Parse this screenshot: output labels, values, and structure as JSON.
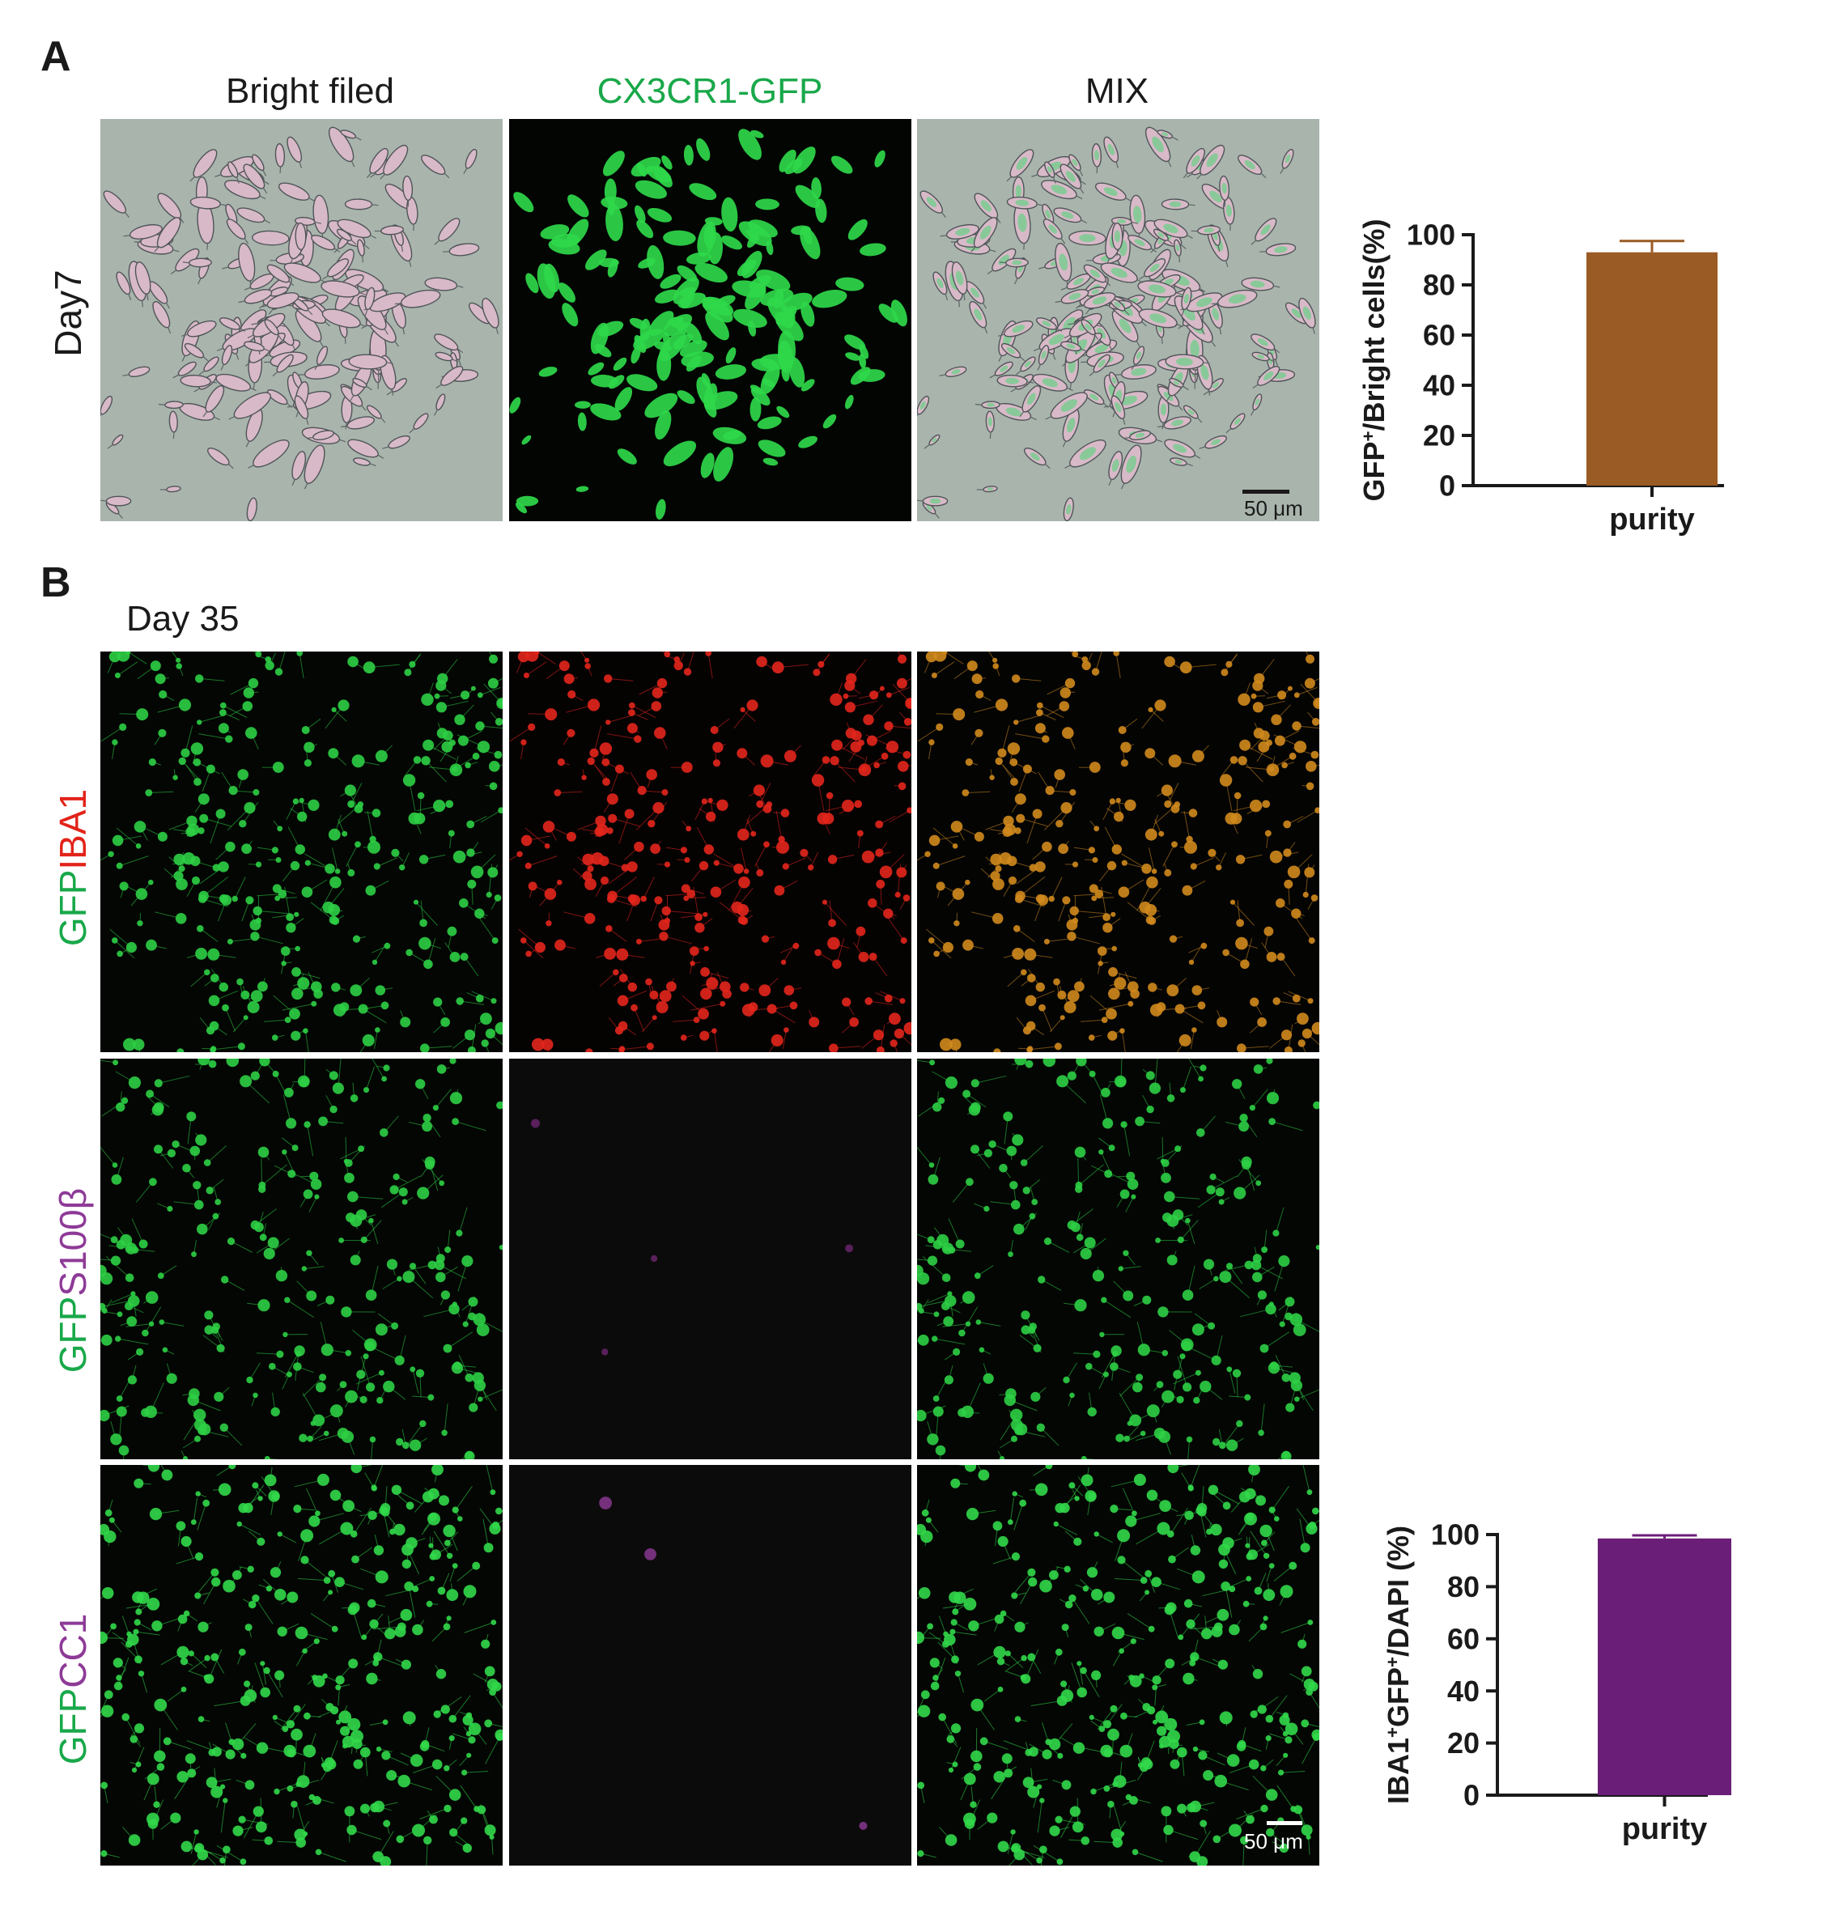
{
  "panel_a": {
    "letter": "A",
    "columns": [
      {
        "label": "Bright filed",
        "color": "#1a1a1a"
      },
      {
        "label": "CX3CR1-GFP",
        "color": "#19a84a"
      },
      {
        "label": "MIX",
        "color": "#1a1a1a"
      }
    ],
    "row_label": "Day7",
    "scale_bar": "50 μm"
  },
  "panel_b": {
    "letter": "B",
    "subtitle": "Day 35",
    "rows": [
      {
        "prefix": "GFP",
        "marker": "IBA1",
        "marker_color": "#e2231a"
      },
      {
        "prefix": "GFP",
        "marker": "S100β",
        "marker_color": "#8e3a97"
      },
      {
        "prefix": "GFP",
        "marker": "CC1",
        "marker_color": "#8e3a97"
      }
    ],
    "prefix_color": "#19a84a",
    "scale_bar": "50 μm"
  },
  "chart_data": [
    {
      "type": "bar",
      "categories": [
        "purity"
      ],
      "values": [
        93
      ],
      "error": [
        4.5
      ],
      "ylabel_parts": [
        "GFP",
        "+",
        "/Bright cells(%)"
      ],
      "ylim": [
        0,
        100
      ],
      "yticks": [
        "0",
        "20",
        "40",
        "60",
        "80",
        "100"
      ],
      "bar_color": "#9a5b25"
    },
    {
      "type": "bar",
      "categories": [
        "purity"
      ],
      "values": [
        98.5
      ],
      "error": [
        1.2
      ],
      "ylabel_parts": [
        "IBA1",
        "+",
        "GFP",
        "+",
        "/DAPI (%)"
      ],
      "ylim": [
        0,
        100
      ],
      "yticks": [
        "0",
        "20",
        "40",
        "60",
        "80",
        "100"
      ],
      "bar_color": "#6b1e78"
    }
  ]
}
